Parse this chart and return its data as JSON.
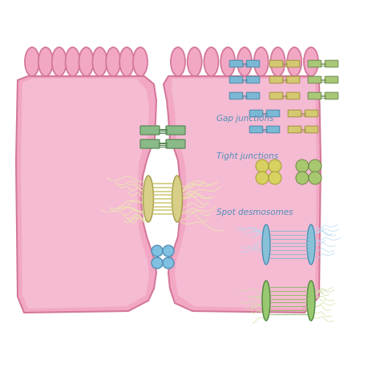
{
  "bg_color": "#ffffff",
  "cell_fill": "#f2a8c5",
  "cell_outline": "#d4789a",
  "cell_inner_fill": "#f8cce0",
  "gap_j_green": "#8aba88",
  "gap_j_green_dark": "#5a8a58",
  "desmo_yellow": "#d8d088",
  "desmo_yellow_dark": "#a8a050",
  "desmo_fiber": "#ece8b0",
  "tight_j_blue": "#80c0e0",
  "tight_j_blue_dark": "#5090b8",
  "icon_blue": "#7ab8d4",
  "icon_blue_dark": "#4a88a8",
  "icon_yellow": "#d4c870",
  "icon_yellow_dark": "#a09040",
  "icon_green": "#a8c878",
  "icon_green_dark": "#688848",
  "icon_tj_yellow": "#d8d060",
  "icon_tj_yellow_dark": "#a0a030",
  "icon_tj_green": "#a8c870",
  "icon_tj_green_dark": "#688840",
  "desmo_icon_blue": "#88c0d8",
  "desmo_icon_blue_dark": "#4890b0",
  "desmo_icon_blue_fiber": "#b8d8f0",
  "desmo_icon_green": "#98c870",
  "desmo_icon_green_dark": "#508840",
  "desmo_icon_green_fiber": "#d0e0a8",
  "gap_j_label": "Gap junctions",
  "tight_j_label": "Tight junctions",
  "spot_d_label": "Spot desmosomes",
  "label_color": "#5090b8",
  "label_fontsize": 7.5
}
